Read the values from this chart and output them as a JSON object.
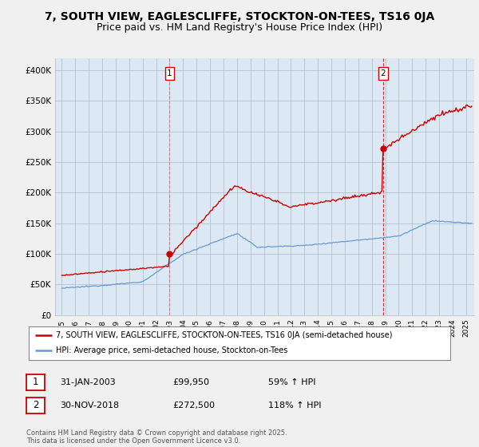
{
  "title": "7, SOUTH VIEW, EAGLESCLIFFE, STOCKTON-ON-TEES, TS16 0JA",
  "subtitle": "Price paid vs. HM Land Registry's House Price Index (HPI)",
  "yticks": [
    0,
    50000,
    100000,
    150000,
    200000,
    250000,
    300000,
    350000,
    400000
  ],
  "ytick_labels": [
    "£0",
    "£50K",
    "£100K",
    "£150K",
    "£200K",
    "£250K",
    "£300K",
    "£350K",
    "£400K"
  ],
  "legend_line1": "7, SOUTH VIEW, EAGLESCLIFFE, STOCKTON-ON-TEES, TS16 0JA (semi-detached house)",
  "legend_line2": "HPI: Average price, semi-detached house, Stockton-on-Tees",
  "sale1_date": "31-JAN-2003",
  "sale1_price": "£99,950",
  "sale1_hpi": "59% ↑ HPI",
  "sale2_date": "30-NOV-2018",
  "sale2_price": "£272,500",
  "sale2_hpi": "118% ↑ HPI",
  "red_color": "#cc0000",
  "blue_color": "#6699cc",
  "plot_bg": "#dce9f5",
  "bg_color": "#f0f0f0",
  "grid_color": "#b0b8c8",
  "annotation_box_color": "#cc0000",
  "title_fontsize": 10,
  "subtitle_fontsize": 9,
  "footer_text": "Contains HM Land Registry data © Crown copyright and database right 2025.\nThis data is licensed under the Open Government Licence v3.0."
}
